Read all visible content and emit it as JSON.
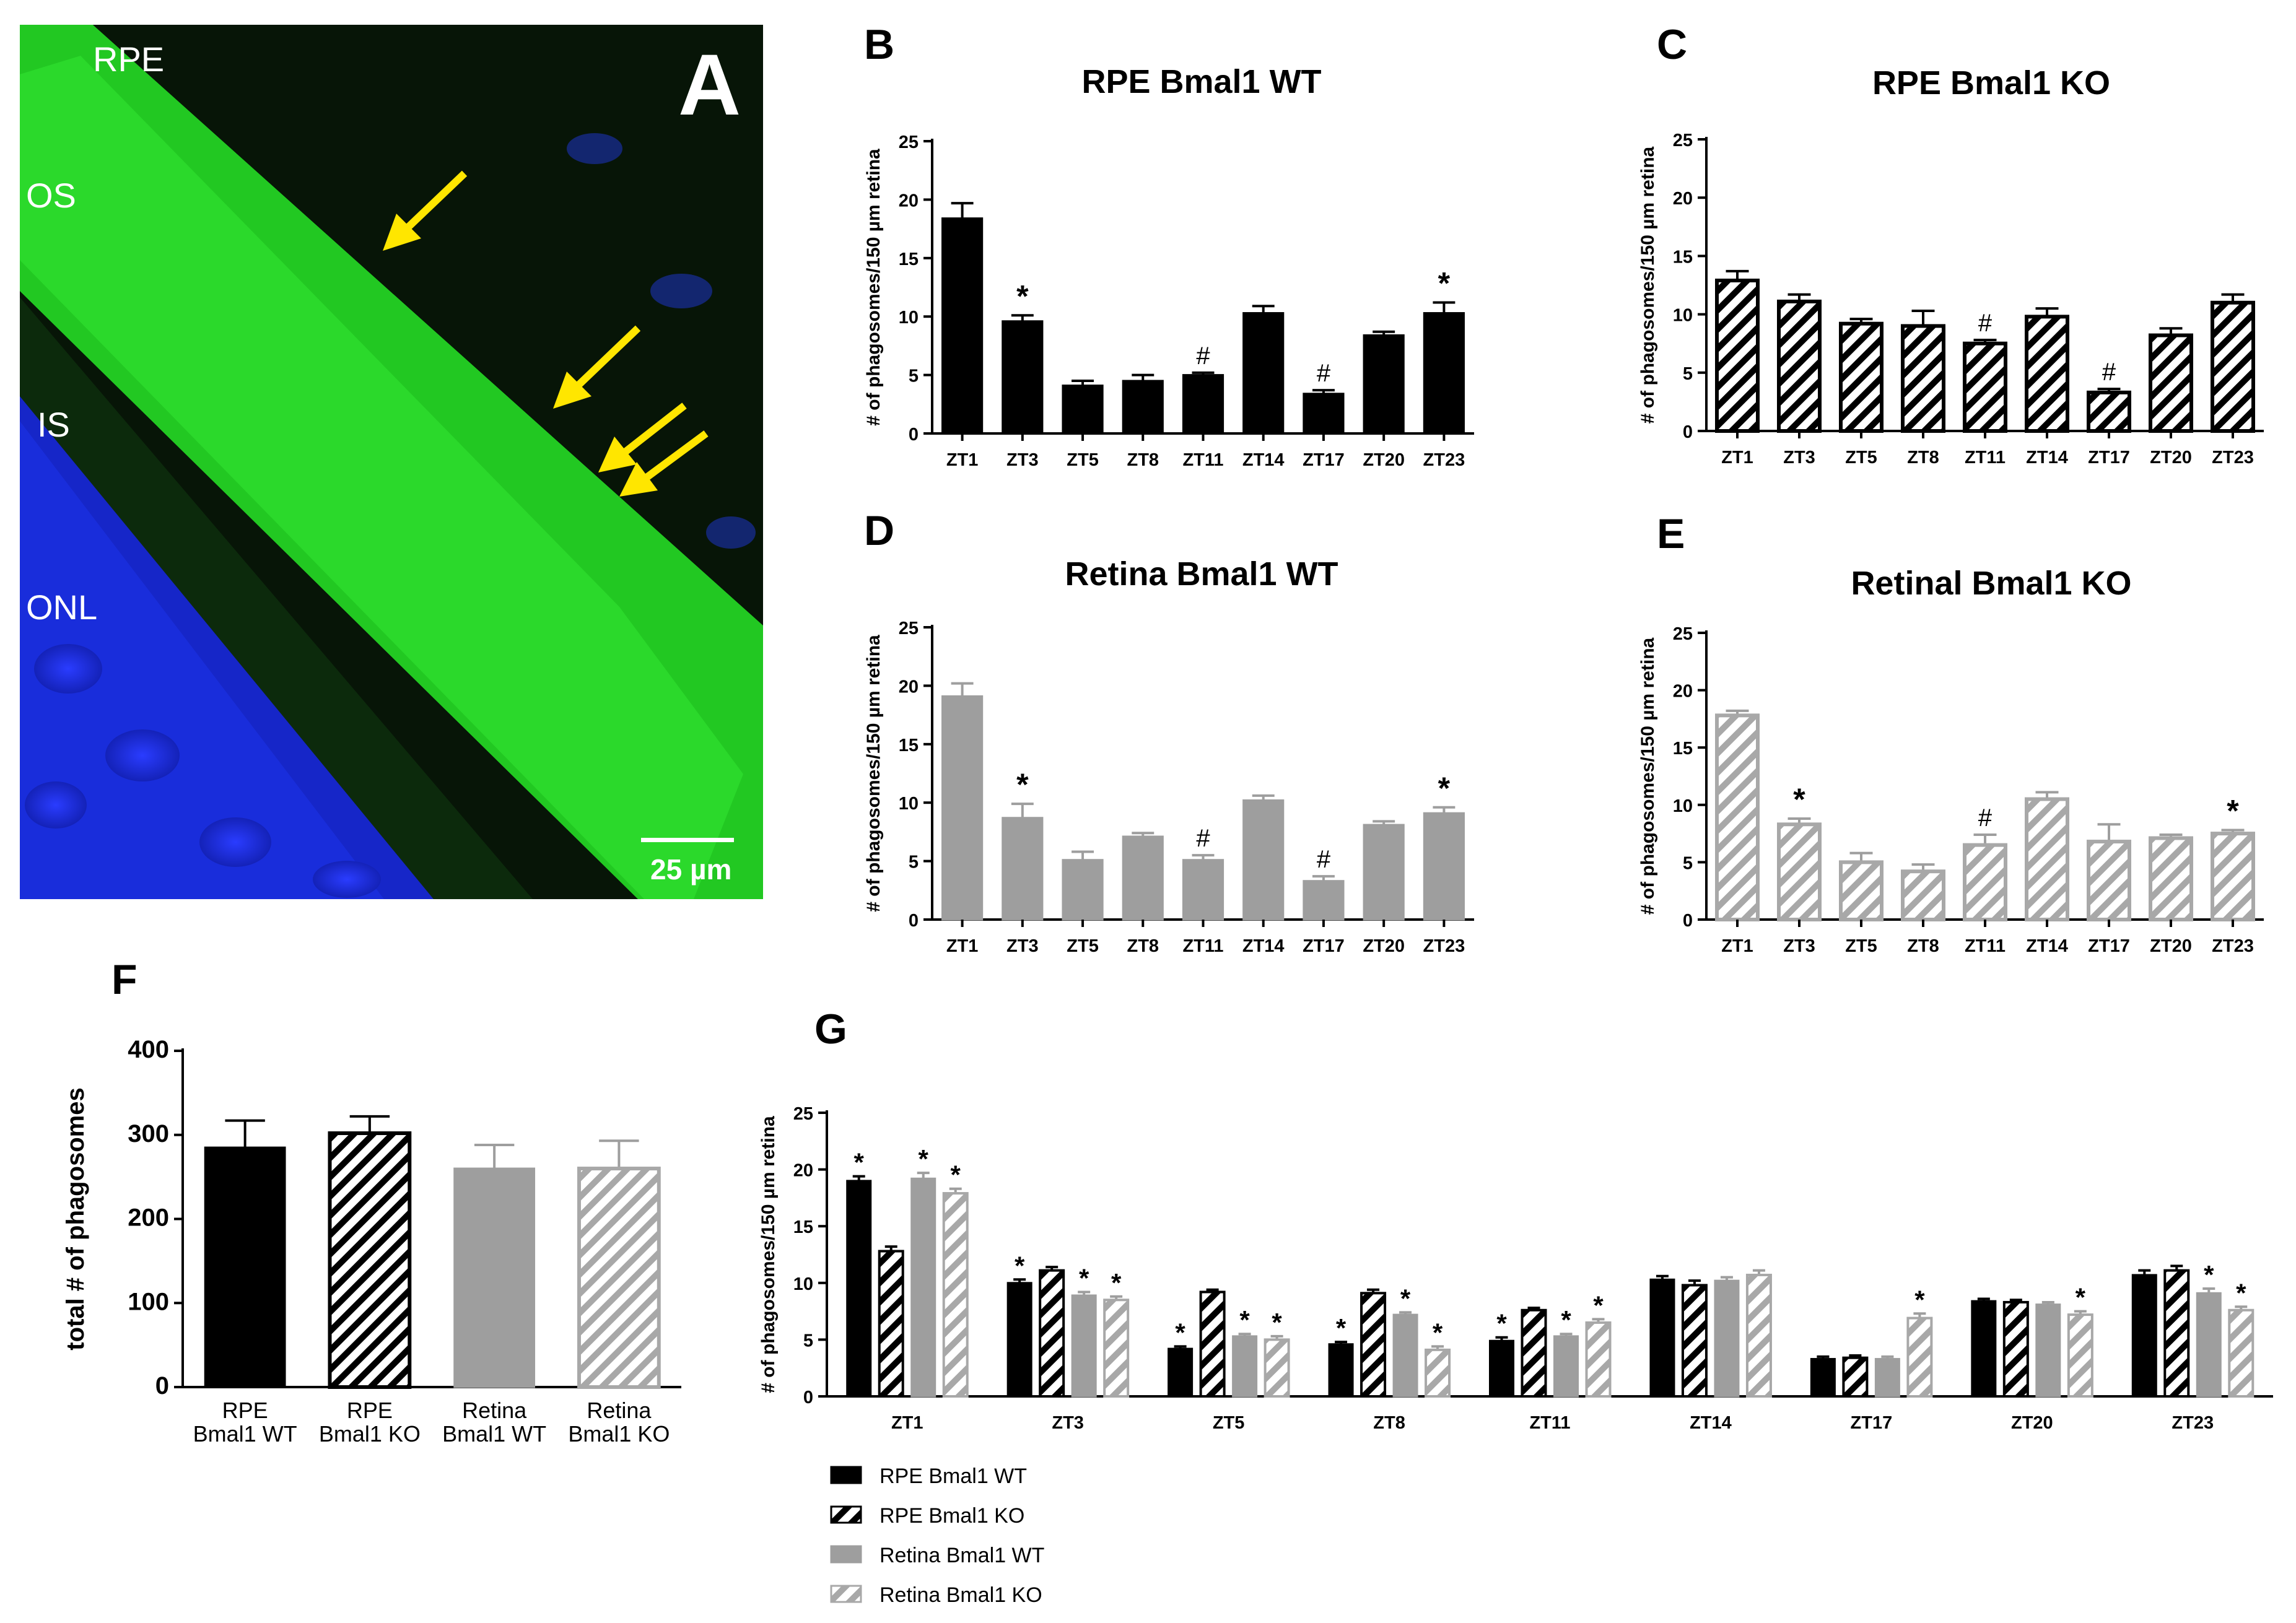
{
  "colors": {
    "black": "#000000",
    "gray": "#9e9e9e",
    "hatch_gray": "#a8a8a8",
    "arrow": "#ffe600",
    "green": "#1fd41f",
    "nucleus_blue": "#1a2fe0"
  },
  "micrograph": {
    "panel_label": "A",
    "layer_labels": [
      "RPE",
      "OS",
      "IS",
      "ONL"
    ],
    "scale_bar_label": "25 µm",
    "arrow_icon": "yellow-arrow-icon"
  },
  "chart_data": [
    {
      "panel": "B",
      "type": "bar",
      "title": "RPE Bmal1 WT",
      "ylabel": "# of phagosomes/150 µm retina",
      "xlabel": "",
      "ylim": [
        0,
        25
      ],
      "yticks": [
        "0",
        "5",
        "10",
        "15",
        "20",
        "25"
      ],
      "style": "solid-black",
      "categories": [
        "ZT1",
        "ZT3",
        "ZT5",
        "ZT8",
        "ZT11",
        "ZT14",
        "ZT17",
        "ZT20",
        "ZT23"
      ],
      "values": [
        18.4,
        9.6,
        4.1,
        4.5,
        5.0,
        10.3,
        3.4,
        8.4,
        10.3
      ],
      "errors": [
        1.3,
        0.5,
        0.4,
        0.5,
        0.2,
        0.6,
        0.3,
        0.3,
        0.9
      ],
      "markers": [
        "",
        "*",
        "",
        "",
        "#",
        "",
        "#",
        "",
        "*"
      ]
    },
    {
      "panel": "C",
      "type": "bar",
      "title": "RPE Bmal1 KO",
      "ylabel": "# of phagosomes/150 µm retina",
      "xlabel": "",
      "ylim": [
        0,
        25
      ],
      "yticks": [
        "0",
        "5",
        "10",
        "15",
        "20",
        "25"
      ],
      "style": "hatched-black",
      "categories": [
        "ZT1",
        "ZT3",
        "ZT5",
        "ZT8",
        "ZT11",
        "ZT14",
        "ZT17",
        "ZT20",
        "ZT23"
      ],
      "values": [
        12.9,
        11.1,
        9.2,
        9.0,
        7.5,
        9.8,
        3.3,
        8.2,
        11.0
      ],
      "errors": [
        0.8,
        0.6,
        0.4,
        1.3,
        0.3,
        0.7,
        0.3,
        0.6,
        0.7
      ],
      "markers": [
        "",
        "",
        "",
        "",
        "#",
        "",
        "#",
        "",
        ""
      ]
    },
    {
      "panel": "D",
      "type": "bar",
      "title": "Retina Bmal1 WT",
      "ylabel": "# of phagosomes/150 µm retina",
      "xlabel": "",
      "ylim": [
        0,
        25
      ],
      "yticks": [
        "0",
        "5",
        "10",
        "15",
        "20",
        "25"
      ],
      "style": "solid-gray",
      "categories": [
        "ZT1",
        "ZT3",
        "ZT5",
        "ZT8",
        "ZT11",
        "ZT14",
        "ZT17",
        "ZT20",
        "ZT23"
      ],
      "values": [
        19.1,
        8.7,
        5.1,
        7.1,
        5.1,
        10.2,
        3.3,
        8.1,
        9.1
      ],
      "errors": [
        1.1,
        1.2,
        0.7,
        0.3,
        0.4,
        0.4,
        0.4,
        0.3,
        0.5
      ],
      "markers": [
        "",
        "*",
        "",
        "",
        "#",
        "",
        "#",
        "",
        "*"
      ]
    },
    {
      "panel": "E",
      "type": "bar",
      "title": "Retinal Bmal1 KO",
      "ylabel": "# of phagosomes/150 µm retina",
      "xlabel": "",
      "ylim": [
        0,
        25
      ],
      "yticks": [
        "0",
        "5",
        "10",
        "15",
        "20",
        "25"
      ],
      "style": "hatched-gray",
      "categories": [
        "ZT1",
        "ZT3",
        "ZT5",
        "ZT8",
        "ZT11",
        "ZT14",
        "ZT17",
        "ZT20",
        "ZT23"
      ],
      "values": [
        17.8,
        8.3,
        5.0,
        4.2,
        6.5,
        10.5,
        6.8,
        7.1,
        7.5
      ],
      "errors": [
        0.4,
        0.5,
        0.8,
        0.6,
        0.9,
        0.6,
        1.5,
        0.3,
        0.3
      ],
      "markers": [
        "",
        "*",
        "",
        "",
        "#",
        "",
        "",
        "",
        "*"
      ]
    },
    {
      "panel": "F",
      "type": "bar",
      "title": "",
      "ylabel": "total # of phagosomes",
      "xlabel": "",
      "ylim": [
        0,
        400
      ],
      "yticks": [
        "0",
        "100",
        "200",
        "300",
        "400"
      ],
      "categories": [
        [
          "RPE",
          "Bmal1 WT"
        ],
        [
          "RPE",
          "Bmal1 KO"
        ],
        [
          "Retina",
          "Bmal1 WT"
        ],
        [
          "Retina",
          "Bmal1 KO"
        ]
      ],
      "styles": [
        "solid-black",
        "hatched-black",
        "solid-gray",
        "hatched-gray"
      ],
      "values": [
        285,
        302,
        260,
        260
      ],
      "errors": [
        32,
        20,
        28,
        33
      ]
    },
    {
      "panel": "G",
      "type": "bar",
      "title": "",
      "ylabel": "# of phagosomes/150 µm retina",
      "xlabel": "",
      "ylim": [
        0,
        25
      ],
      "yticks": [
        "0",
        "5",
        "10",
        "15",
        "20",
        "25"
      ],
      "categories": [
        "ZT1",
        "ZT3",
        "ZT5",
        "ZT8",
        "ZT11",
        "ZT14",
        "ZT17",
        "ZT20",
        "ZT23"
      ],
      "series": [
        {
          "name": "RPE Bmal1 WT",
          "style": "solid-black",
          "values": [
            19.0,
            10.0,
            4.2,
            4.6,
            4.9,
            10.3,
            3.3,
            8.4,
            10.7
          ],
          "errors": [
            0.4,
            0.3,
            0.2,
            0.2,
            0.3,
            0.3,
            0.2,
            0.2,
            0.4
          ],
          "markers": [
            "*",
            "*",
            "*",
            "*",
            "*",
            "",
            "",
            "",
            ""
          ]
        },
        {
          "name": "RPE Bmal1 KO",
          "style": "hatched-black",
          "values": [
            12.8,
            11.1,
            9.2,
            9.1,
            7.6,
            9.8,
            3.4,
            8.3,
            11.1
          ],
          "errors": [
            0.4,
            0.3,
            0.2,
            0.3,
            0.2,
            0.4,
            0.2,
            0.2,
            0.4
          ],
          "markers": [
            "",
            "",
            "",
            "",
            "",
            "",
            "",
            "",
            ""
          ]
        },
        {
          "name": "Retina Bmal1 WT",
          "style": "solid-gray",
          "values": [
            19.2,
            8.9,
            5.3,
            7.2,
            5.3,
            10.2,
            3.3,
            8.1,
            9.1
          ],
          "errors": [
            0.5,
            0.3,
            0.2,
            0.2,
            0.2,
            0.3,
            0.2,
            0.2,
            0.4
          ],
          "markers": [
            "*",
            "*",
            "*",
            "*",
            "*",
            "",
            "",
            "",
            "*"
          ]
        },
        {
          "name": "Retina Bmal1 KO",
          "style": "hatched-gray",
          "values": [
            17.9,
            8.5,
            5.0,
            4.1,
            6.5,
            10.7,
            6.9,
            7.2,
            7.6
          ],
          "errors": [
            0.4,
            0.3,
            0.3,
            0.3,
            0.3,
            0.4,
            0.4,
            0.3,
            0.3
          ],
          "markers": [
            "*",
            "*",
            "*",
            "*",
            "*",
            "",
            "*",
            "*",
            "*"
          ]
        }
      ],
      "legend_position": "bottom-left"
    }
  ]
}
